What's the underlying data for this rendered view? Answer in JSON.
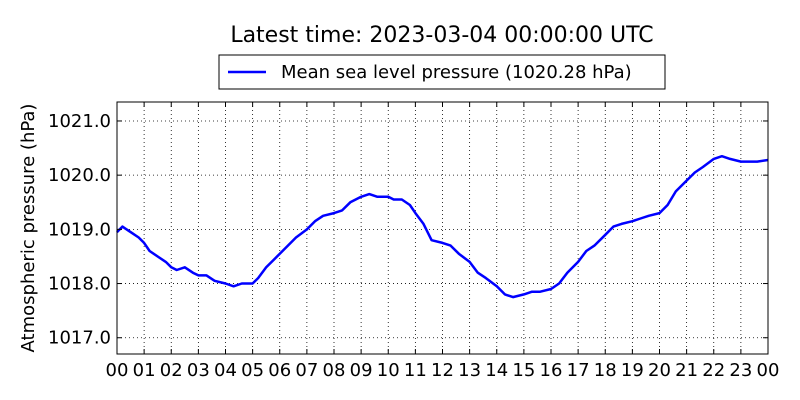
{
  "chart_data": {
    "type": "line",
    "title": "Latest time: 2023-03-04 00:00:00 UTC",
    "xlabel": "",
    "ylabel": "Atmospheric pressure (hPa)",
    "xlim": [
      0,
      24
    ],
    "ylim": [
      1016.7,
      1021.35
    ],
    "grid": true,
    "legend_position": "top-center",
    "x_tick_labels": [
      "00",
      "01",
      "02",
      "03",
      "04",
      "05",
      "06",
      "07",
      "08",
      "09",
      "10",
      "11",
      "12",
      "13",
      "14",
      "15",
      "16",
      "17",
      "18",
      "19",
      "20",
      "21",
      "22",
      "23",
      "00"
    ],
    "y_ticks": [
      1017.0,
      1018.0,
      1019.0,
      1020.0,
      1021.0
    ],
    "y_tick_labels": [
      "1017.0",
      "1018.0",
      "1019.0",
      "1020.0",
      "1021.0"
    ],
    "series": [
      {
        "name": "Mean sea level pressure (1020.28 hPa)",
        "color": "#0000ff",
        "x": [
          0,
          0.2,
          0.5,
          0.8,
          1.0,
          1.2,
          1.5,
          1.8,
          2.0,
          2.2,
          2.5,
          2.8,
          3.0,
          3.3,
          3.6,
          4.0,
          4.3,
          4.6,
          5.0,
          5.2,
          5.5,
          5.8,
          6.0,
          6.3,
          6.6,
          7.0,
          7.3,
          7.6,
          8.0,
          8.3,
          8.6,
          9.0,
          9.3,
          9.6,
          10.0,
          10.2,
          10.5,
          10.8,
          11.0,
          11.3,
          11.6,
          12.0,
          12.3,
          12.6,
          13.0,
          13.3,
          13.6,
          14.0,
          14.3,
          14.6,
          15.0,
          15.3,
          15.6,
          16.0,
          16.3,
          16.6,
          17.0,
          17.3,
          17.6,
          18.0,
          18.3,
          18.6,
          19.0,
          19.3,
          19.6,
          20.0,
          20.3,
          20.6,
          21.0,
          21.3,
          21.6,
          22.0,
          22.3,
          22.6,
          23.0,
          23.3,
          23.6,
          24.0
        ],
        "values": [
          1018.95,
          1019.05,
          1018.95,
          1018.85,
          1018.75,
          1018.6,
          1018.5,
          1018.4,
          1018.3,
          1018.25,
          1018.3,
          1018.2,
          1018.15,
          1018.15,
          1018.05,
          1018.0,
          1017.95,
          1018.0,
          1018.0,
          1018.1,
          1018.3,
          1018.45,
          1018.55,
          1018.7,
          1018.85,
          1019.0,
          1019.15,
          1019.25,
          1019.3,
          1019.35,
          1019.5,
          1019.6,
          1019.65,
          1019.6,
          1019.6,
          1019.55,
          1019.55,
          1019.45,
          1019.3,
          1019.1,
          1018.8,
          1018.75,
          1018.7,
          1018.55,
          1018.4,
          1018.2,
          1018.1,
          1017.95,
          1017.8,
          1017.75,
          1017.8,
          1017.85,
          1017.85,
          1017.9,
          1018.0,
          1018.2,
          1018.4,
          1018.6,
          1018.7,
          1018.9,
          1019.05,
          1019.1,
          1019.15,
          1019.2,
          1019.25,
          1019.3,
          1019.45,
          1019.7,
          1019.9,
          1020.05,
          1020.15,
          1020.3,
          1020.35,
          1020.3,
          1020.25,
          1020.25,
          1020.25,
          1020.28
        ]
      }
    ]
  }
}
